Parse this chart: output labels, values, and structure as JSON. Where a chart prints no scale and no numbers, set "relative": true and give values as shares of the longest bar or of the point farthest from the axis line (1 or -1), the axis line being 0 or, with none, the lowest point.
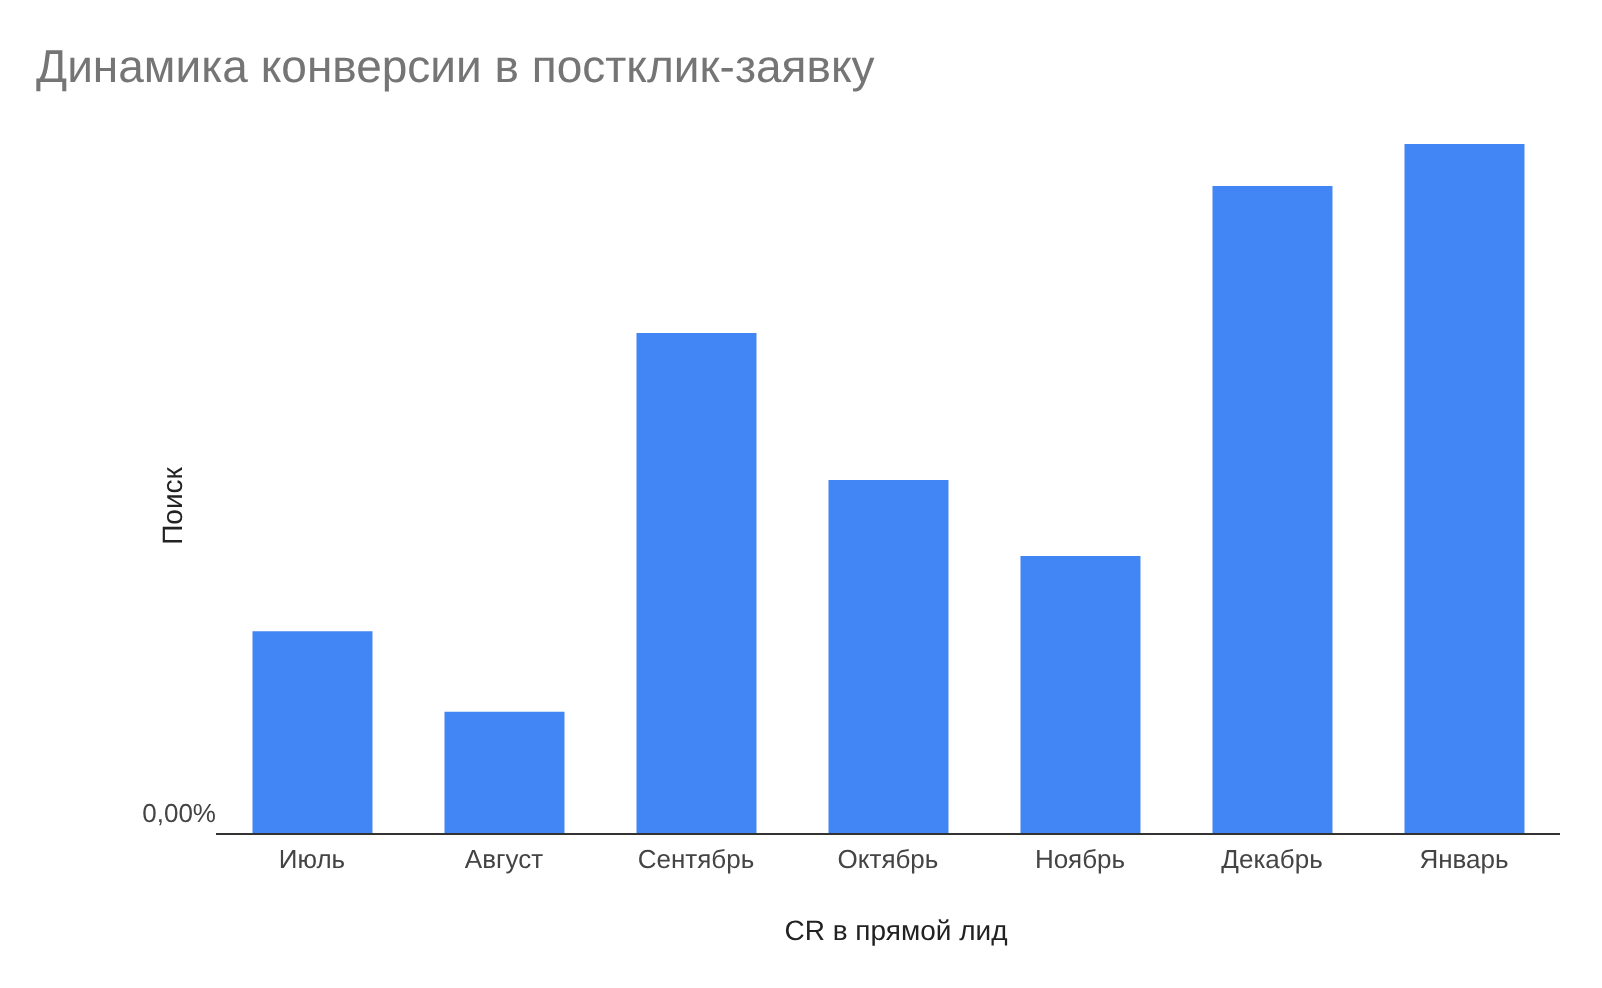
{
  "chart_data": {
    "type": "bar",
    "title": "Динамика конверсии в постклик-заявку",
    "xlabel": "CR в прямой лид",
    "ylabel": "Поиск",
    "relative": true,
    "categories": [
      "Июль",
      "Август",
      "Сентябрь",
      "Октябрь",
      "Ноябрь",
      "Декабрь",
      "Январь"
    ],
    "values": [
      0.294,
      0.177,
      0.726,
      0.513,
      0.403,
      0.939,
      1
    ],
    "color": "#4285f4",
    "annotations": [
      "0,00%"
    ]
  }
}
